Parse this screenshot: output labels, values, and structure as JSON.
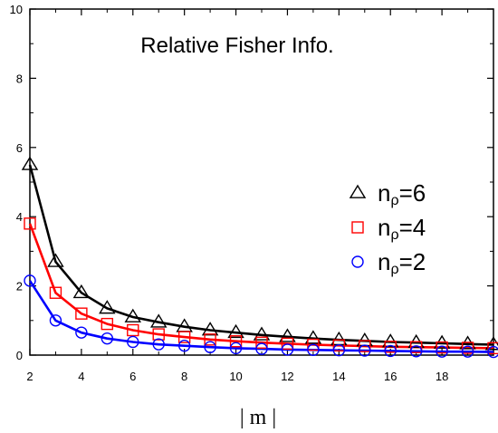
{
  "chart_data": {
    "type": "line",
    "title": "Relative Fisher Info.",
    "xlabel": "| m |",
    "ylabel": "",
    "xlim": [
      2,
      20
    ],
    "ylim": [
      0,
      10
    ],
    "x_ticks": [
      2,
      4,
      6,
      8,
      10,
      12,
      14,
      16,
      18
    ],
    "y_ticks": [
      0,
      2,
      4,
      6,
      8,
      10
    ],
    "grid": false,
    "legend_position": "right",
    "x": [
      2,
      3,
      4,
      5,
      6,
      7,
      8,
      9,
      10,
      11,
      12,
      13,
      14,
      15,
      16,
      17,
      18,
      19,
      20
    ],
    "series": [
      {
        "name": "nρ=6",
        "name_base": "n",
        "name_sub": "ρ",
        "name_rest": "=6",
        "marker": "triangle",
        "color": "#000000",
        "values": [
          5.5,
          2.7,
          1.8,
          1.35,
          1.1,
          0.95,
          0.82,
          0.72,
          0.65,
          0.58,
          0.53,
          0.48,
          0.44,
          0.41,
          0.38,
          0.36,
          0.34,
          0.32,
          0.3
        ]
      },
      {
        "name": "nρ=4",
        "name_base": "n",
        "name_sub": "ρ",
        "name_rest": "=4",
        "marker": "square",
        "color": "#ff0000",
        "values": [
          3.8,
          1.8,
          1.2,
          0.9,
          0.72,
          0.6,
          0.52,
          0.45,
          0.4,
          0.36,
          0.33,
          0.3,
          0.28,
          0.26,
          0.24,
          0.23,
          0.22,
          0.21,
          0.2
        ]
      },
      {
        "name": "nρ=2",
        "name_base": "n",
        "name_sub": "ρ",
        "name_rest": "=2",
        "marker": "circle",
        "color": "#0000ff",
        "values": [
          2.15,
          1.0,
          0.65,
          0.48,
          0.38,
          0.31,
          0.27,
          0.23,
          0.2,
          0.18,
          0.16,
          0.15,
          0.14,
          0.13,
          0.12,
          0.11,
          0.1,
          0.1,
          0.09
        ]
      }
    ]
  }
}
